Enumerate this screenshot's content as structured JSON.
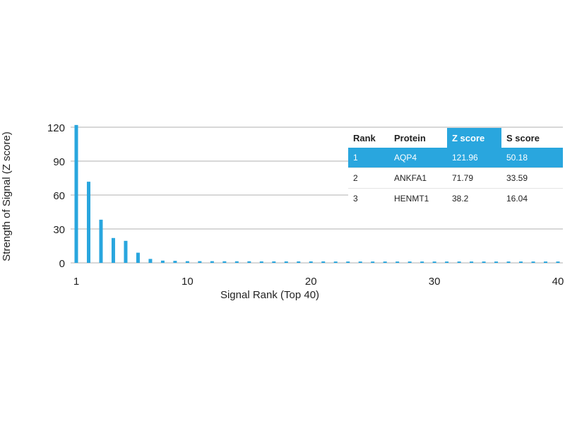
{
  "chart_data": {
    "type": "bar",
    "title": "",
    "xlabel": "Signal Rank (Top 40)",
    "ylabel": "Strength of Signal (Z score)",
    "xlim": [
      1,
      40
    ],
    "ylim": [
      0,
      120
    ],
    "xticks": [
      1,
      10,
      20,
      30,
      40
    ],
    "yticks": [
      0,
      30,
      60,
      90,
      120
    ],
    "grid": true,
    "bar_color": "#29a6de",
    "x": [
      1,
      2,
      3,
      4,
      5,
      6,
      7,
      8,
      9,
      10,
      11,
      12,
      13,
      14,
      15,
      16,
      17,
      18,
      19,
      20,
      21,
      22,
      23,
      24,
      25,
      26,
      27,
      28,
      29,
      30,
      31,
      32,
      33,
      34,
      35,
      36,
      37,
      38,
      39,
      40
    ],
    "values": [
      121.96,
      71.79,
      38.2,
      22,
      19.5,
      9,
      3.5,
      2,
      1.8,
      1.5,
      1.5,
      1.5,
      1.4,
      1.4,
      1.4,
      1.3,
      1.3,
      1.3,
      1.3,
      1.3,
      1.3,
      1.2,
      1.2,
      1.2,
      1.2,
      1.2,
      1.2,
      1.2,
      1.2,
      1.2,
      1.2,
      1.2,
      1.2,
      1.2,
      1.2,
      1.2,
      1.2,
      1.2,
      1.2,
      1.2
    ]
  },
  "table": {
    "headers": [
      "Rank",
      "Protein",
      "Z score",
      "S score"
    ],
    "highlight_color": "#29a6de",
    "rows": [
      [
        "1",
        "AQP4",
        "121.96",
        "50.18"
      ],
      [
        "2",
        "ANKFA1",
        "71.79",
        "33.59"
      ],
      [
        "3",
        "HENMT1",
        "38.2",
        "16.04"
      ]
    ]
  }
}
